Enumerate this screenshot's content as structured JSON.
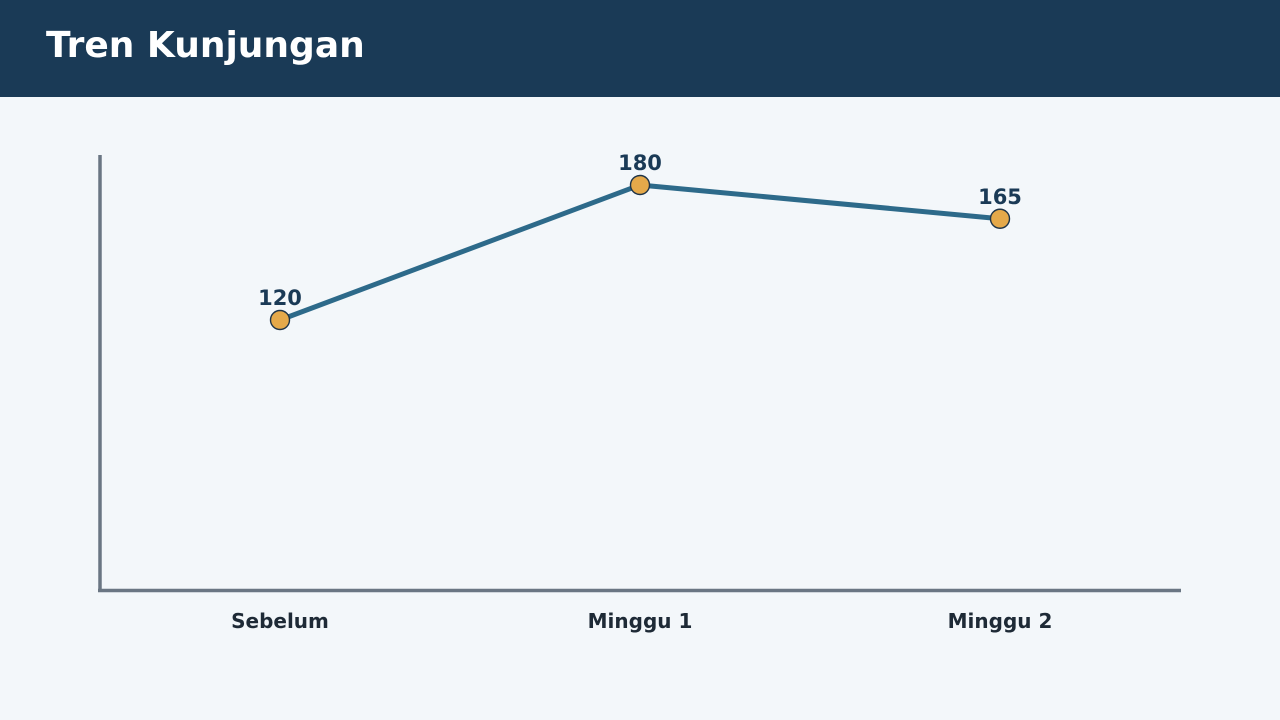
{
  "header": {
    "title": "Tren Kunjungan"
  },
  "colors": {
    "header_bg": "#1a3a56",
    "background": "#f3f7fa",
    "line": "#2d6a8a",
    "point": "#e5a94a",
    "axis": "#6a7683"
  },
  "chart_data": {
    "type": "line",
    "title": "Tren Kunjungan",
    "xlabel": "",
    "ylabel": "",
    "categories": [
      "Sebelum",
      "Minggu 1",
      "Minggu 2"
    ],
    "series": [
      {
        "values": [
          120,
          180,
          165
        ]
      }
    ],
    "data_labels": [
      "120",
      "180",
      "165"
    ],
    "ylim": [
      0,
      200
    ],
    "grid": false,
    "legend": "none"
  }
}
